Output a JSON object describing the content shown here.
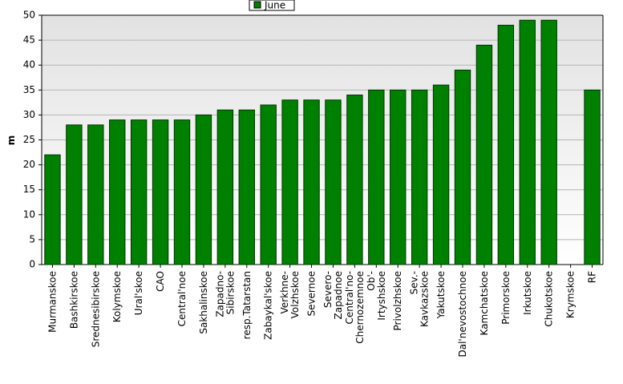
{
  "chart_data": {
    "type": "bar",
    "y_label": "m",
    "categories": [
      "Murmanskoe",
      "Bashkirskoe",
      "Srednesibirskoe",
      "Kolymskoe",
      "Ural'skoe",
      "CAO",
      "Central'noe",
      "Sakhalinskoe",
      "Zapadno-\nSibirskoe",
      "resp.Tatarstan",
      "Zabaykal'skoe",
      "Verkhne-\nVolzhskoe",
      "Severnoe",
      "Severo-\nZapadnoe",
      "Central'no-\nChernozemnoe",
      "Ob'-\nIrtyshskoe",
      "Privolzhskoe",
      "Sev.-\nKavkazskoe",
      "Yakutskoe",
      "Dal'nevostochnoe",
      "Kamchatskoe",
      "Primorskoe",
      "Irkutskoe",
      "Chukotskoe",
      "Krymskoe",
      "RF"
    ],
    "series": [
      {
        "name": "June",
        "color": "#008000",
        "values": [
          22,
          28,
          28,
          29,
          29,
          29,
          29,
          30,
          31,
          31,
          32,
          33,
          33,
          33,
          34,
          35,
          35,
          35,
          36,
          39,
          44,
          48,
          49,
          49,
          null,
          35
        ]
      }
    ],
    "ylim": [
      0,
      50
    ],
    "yticks": [
      0,
      5,
      10,
      15,
      20,
      25,
      30,
      35,
      40,
      45,
      50
    ],
    "grid": true,
    "legend": "top"
  }
}
